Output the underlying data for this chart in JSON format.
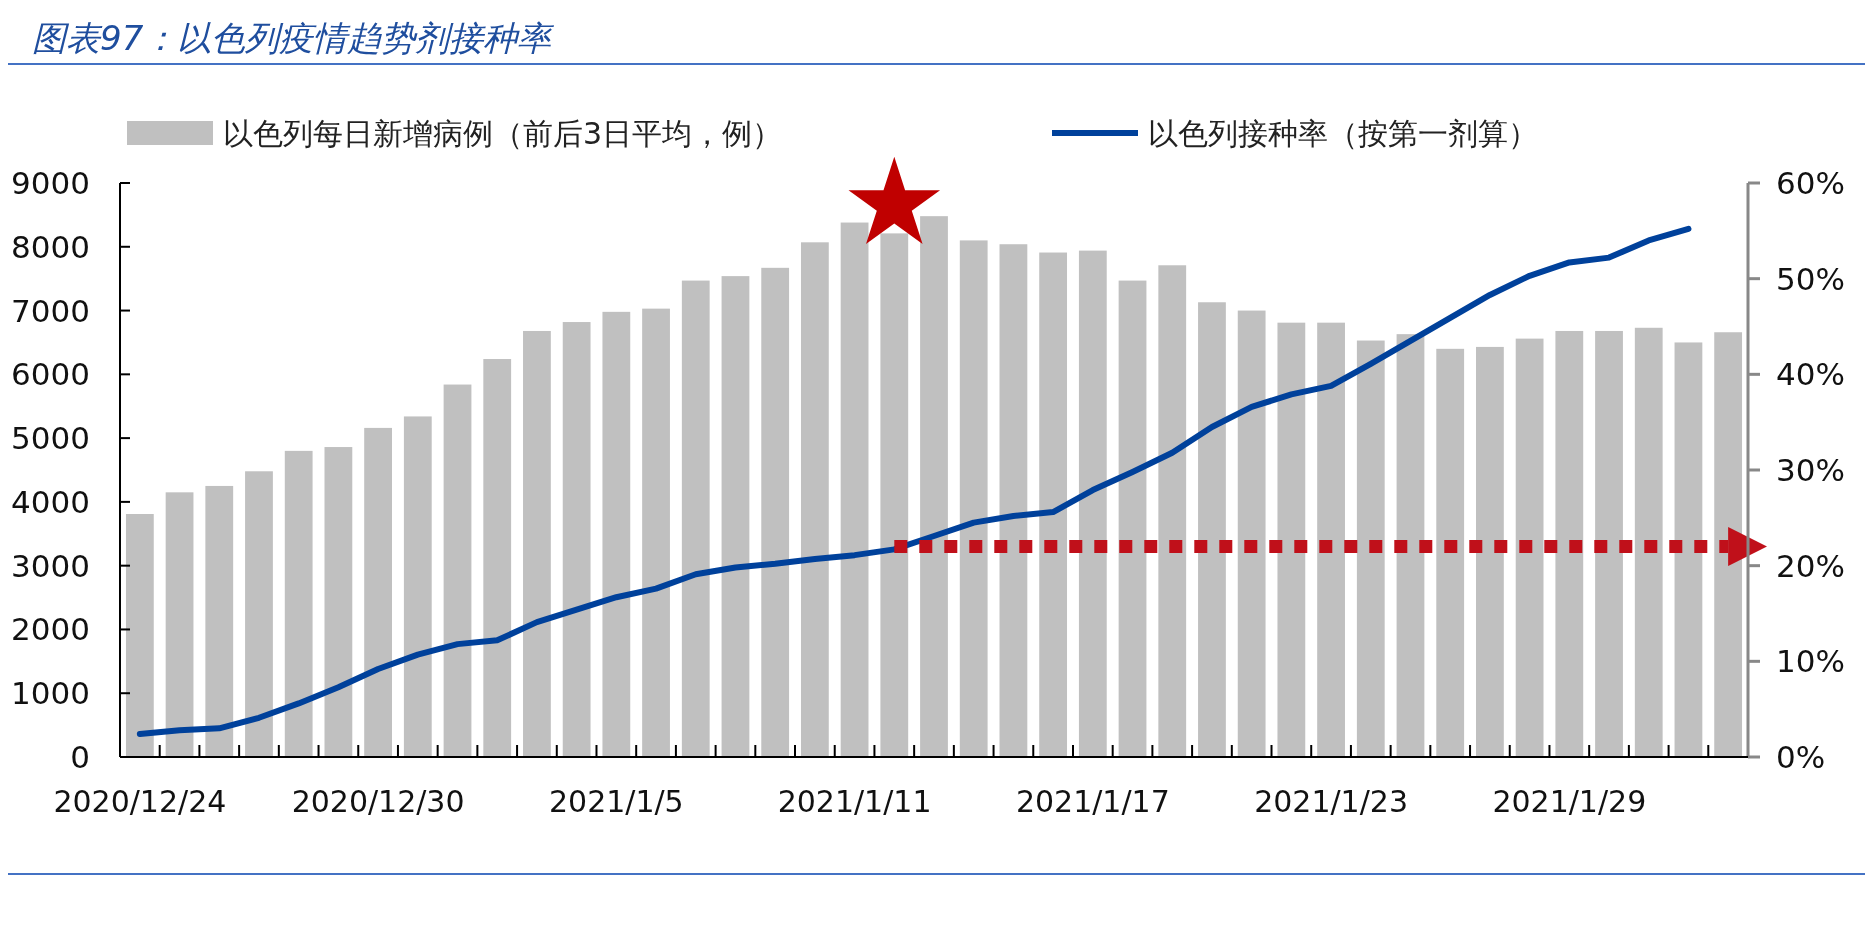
{
  "chart_data": {
    "type": "bar",
    "title": "图表97：以色列疫情趋势剂接种率",
    "categories": [
      "2020/12/24",
      null,
      null,
      null,
      null,
      null,
      "2020/12/30",
      null,
      null,
      null,
      null,
      null,
      "2021/1/5",
      null,
      null,
      null,
      null,
      null,
      "2021/1/11",
      null,
      null,
      null,
      null,
      null,
      "2021/1/17",
      null,
      null,
      null,
      null,
      null,
      "2021/1/23",
      null,
      null,
      null,
      null,
      null,
      "2021/1/29",
      null,
      null,
      null,
      null
    ],
    "series": [
      {
        "name": "以色列每日新增病例（前后3日平均，例）",
        "color": "#c0c0c0",
        "values": [
          3810,
          4150,
          4250,
          4480,
          4800,
          4860,
          5160,
          5340,
          5840,
          6240,
          6680,
          6820,
          6980,
          7030,
          7470,
          7540,
          7670,
          8070,
          8380,
          8210,
          8480,
          8100,
          8040,
          7910,
          7940,
          7470,
          7710,
          7130,
          7000,
          6810,
          6810,
          6530,
          6630,
          6400,
          6430,
          6560,
          6680,
          6680,
          6730,
          6500,
          6660
        ]
      },
      {
        "name": "以色列接种率（按第一剂算）",
        "type": "line",
        "axis": "y2",
        "color": "#00419b",
        "values": [
          2.4,
          2.8,
          3.0,
          4.1,
          5.6,
          7.3,
          9.2,
          10.7,
          11.8,
          12.2,
          14.1,
          15.4,
          16.7,
          17.6,
          19.1,
          19.8,
          20.2,
          20.7,
          21.1,
          21.7,
          23.1,
          24.5,
          25.2,
          25.6,
          27.9,
          29.8,
          31.8,
          34.5,
          36.6,
          37.9,
          38.8,
          41.1,
          43.5,
          45.9,
          48.3,
          50.3,
          51.7,
          52.2,
          54.0,
          55.2,
          null
        ]
      },
      {
        "type": "line",
        "axis": "y2",
        "color": "#c0101a",
        "line_style": "dotted",
        "values": [
          null,
          null,
          null,
          null,
          null,
          null,
          null,
          null,
          null,
          null,
          null,
          null,
          null,
          null,
          null,
          null,
          null,
          null,
          null,
          22,
          22,
          22,
          22,
          22,
          22,
          22,
          22,
          22,
          22,
          22,
          22,
          22,
          22,
          22,
          22,
          22,
          22,
          22,
          22,
          22,
          22
        ]
      }
    ],
    "ylim": [
      0,
      9000
    ],
    "yticks": [
      0,
      1000,
      2000,
      3000,
      4000,
      5000,
      6000,
      7000,
      8000,
      9000
    ],
    "y2lim": [
      0,
      60
    ],
    "y2ticks": [
      {
        "value": 0,
        "label": "0%"
      },
      {
        "value": 10,
        "label": "10%"
      },
      {
        "value": 20,
        "label": "20%"
      },
      {
        "value": 30,
        "label": "30%"
      },
      {
        "value": 40,
        "label": "40%"
      },
      {
        "value": 50,
        "label": "50%"
      },
      {
        "value": 60,
        "label": "60%"
      }
    ],
    "legend": "top",
    "grid": false
  }
}
